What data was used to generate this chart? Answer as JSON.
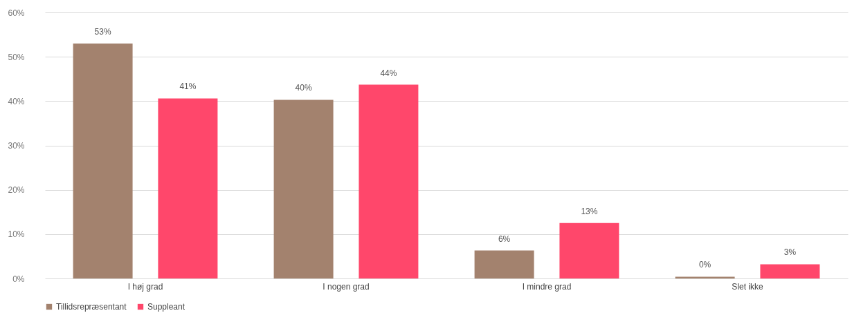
{
  "chart_data": {
    "type": "bar",
    "categories": [
      "I høj grad",
      "I nogen grad",
      "I mindre grad",
      "Slet ikke"
    ],
    "series": [
      {
        "name": "Tillidsrepræsentant",
        "color": "#a3826e",
        "values": [
          53,
          40.3,
          6.3,
          0.4
        ],
        "value_labels": [
          "53%",
          "40%",
          "6%",
          "0%"
        ]
      },
      {
        "name": "Suppleant",
        "color": "#ff476b",
        "values": [
          40.6,
          43.7,
          12.5,
          3.2
        ],
        "value_labels": [
          "41%",
          "44%",
          "13%",
          "3%"
        ]
      }
    ],
    "ylim": [
      0,
      60
    ],
    "yticks": [
      {
        "value": 0,
        "label": "0%"
      },
      {
        "value": 10,
        "label": "10%"
      },
      {
        "value": 20,
        "label": "20%"
      },
      {
        "value": 30,
        "label": "30%"
      },
      {
        "value": 40,
        "label": "40%"
      },
      {
        "value": 50,
        "label": "50%"
      },
      {
        "value": 60,
        "label": "60%"
      }
    ],
    "grid": "y",
    "legend": "bottom"
  }
}
